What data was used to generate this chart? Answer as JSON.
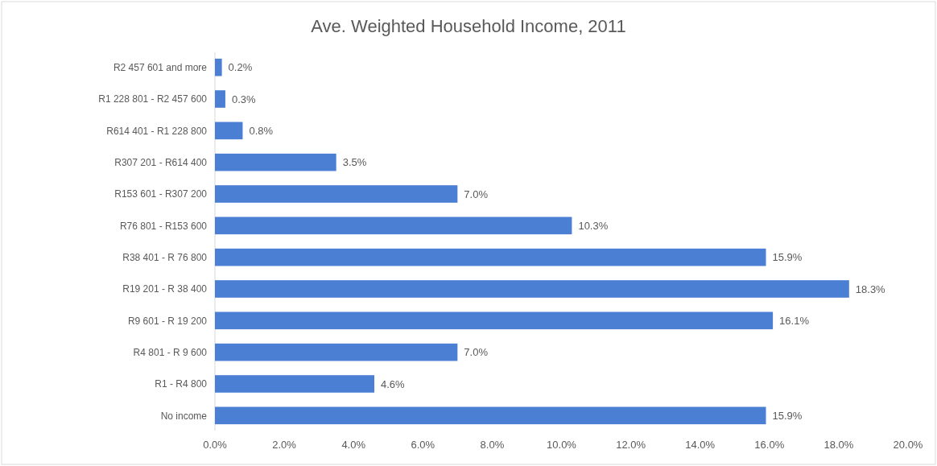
{
  "chart_data": {
    "type": "bar",
    "orientation": "horizontal",
    "title": "Ave. Weighted Household  Income, 2011",
    "categories": [
      "R2 457 601 and more",
      "R1 228 801 - R2 457 600",
      "R614 401 - R1 228 800",
      "R307 201 - R614 400",
      "R153 601 - R307 200",
      "R76 801 - R153 600",
      "R38 401 - R 76 800",
      "R19 201 - R 38 400",
      "R9 601 - R 19 200",
      "R4 801 - R  9 600",
      "R1 - R4 800",
      "No income"
    ],
    "values": [
      0.2,
      0.3,
      0.8,
      3.5,
      7.0,
      10.3,
      15.9,
      18.3,
      16.1,
      7.0,
      4.6,
      15.9
    ],
    "value_labels": [
      "0.2%",
      "0.3%",
      "0.8%",
      "3.5%",
      "7.0%",
      "10.3%",
      "15.9%",
      "18.3%",
      "16.1%",
      "7.0%",
      "4.6%",
      "15.9%"
    ],
    "color": "#4a7fd4",
    "xlim": [
      0,
      20
    ],
    "xticks": [
      {
        "value": 0,
        "label": "0.0%"
      },
      {
        "value": 2,
        "label": "2.0%"
      },
      {
        "value": 4,
        "label": "4.0%"
      },
      {
        "value": 6,
        "label": "6.0%"
      },
      {
        "value": 8,
        "label": "8.0%"
      },
      {
        "value": 10,
        "label": "10.0%"
      },
      {
        "value": 12,
        "label": "12.0%"
      },
      {
        "value": 14,
        "label": "14.0%"
      },
      {
        "value": 16,
        "label": "16.0%"
      },
      {
        "value": 18,
        "label": "18.0%"
      },
      {
        "value": 20,
        "label": "20.0%"
      }
    ]
  }
}
